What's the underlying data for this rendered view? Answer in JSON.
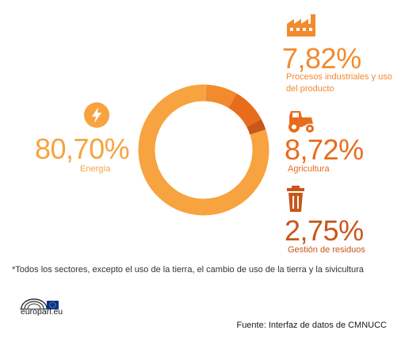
{
  "colors": {
    "energia": "#F7A340",
    "procesos": "#F28A2E",
    "agricultura": "#E86C1C",
    "residuos": "#C9561A",
    "eu_blue": "#003399",
    "eu_yellow": "#FFCC00"
  },
  "chart_data": {
    "type": "pie",
    "donut": true,
    "series": [
      {
        "name": "Energía",
        "value": 80.7,
        "label": "80,70%",
        "icon": "lightning-icon"
      },
      {
        "name": "Procesos industriales y uso del producto",
        "value": 7.82,
        "label": "7,82%",
        "icon": "factory-icon"
      },
      {
        "name": "Agricultura",
        "value": 8.72,
        "label": "8,72%",
        "icon": "tractor-icon"
      },
      {
        "name": "Gestión de residuos",
        "value": 2.75,
        "label": "2,75%",
        "icon": "trash-bin-icon"
      }
    ]
  },
  "labels": {
    "procesos_line1": "Procesos industriales y uso",
    "procesos_line2": "del producto"
  },
  "footnote": "*Todos los sectores, excepto el uso de la tierra, el cambio de uso de la tierra y la sivicultura",
  "brand": "europarl.eu",
  "source": "Fuente: Interfaz de datos de CMNUCC"
}
